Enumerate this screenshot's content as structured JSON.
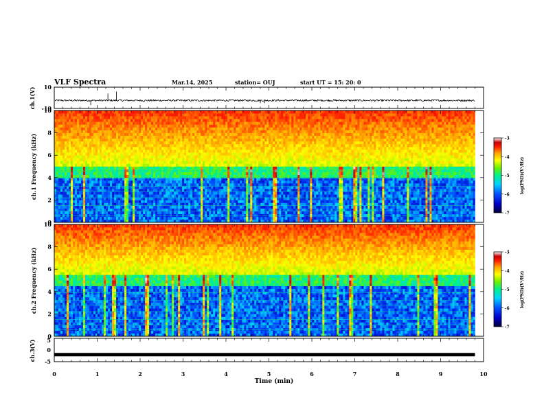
{
  "header": {
    "title": "VLF Spectra",
    "date": "Mar.14, 2025",
    "station": "station= OUJ",
    "start": "start  UT =   15: 20: 0"
  },
  "colors": {
    "spectrum_scale": [
      "#00003a",
      "#0000c8",
      "#0050ff",
      "#00d2ff",
      "#00f08c",
      "#6ef000",
      "#ffff00",
      "#ffa000",
      "#ff1e00",
      "#c80000",
      "#ffffff"
    ],
    "trace": "#000000"
  },
  "chart_data": [
    {
      "type": "line",
      "panel": "ch1-waveform",
      "ylabel": "ch.1(V)",
      "ylim": [
        -10,
        10
      ],
      "yticks": [
        "10",
        "-10"
      ],
      "description_level_v": -2.5,
      "spikes": [
        {
          "x": 0.85,
          "y": -7
        },
        {
          "x": 1.25,
          "y": 4
        },
        {
          "x": 1.45,
          "y": 6
        },
        {
          "x": 4.8,
          "y": -5
        },
        {
          "x": 4.9,
          "y": -5
        }
      ]
    },
    {
      "type": "heatmap",
      "panel": "ch1-spectrogram",
      "ylabel": "ch.1 Frequency (kHz)",
      "ylim": [
        0,
        10
      ],
      "yticks": [
        "0",
        "2",
        "4",
        "6",
        "8",
        "10"
      ],
      "colorbar": {
        "label": "log(PSD)(V²/Hz)",
        "range": [
          -7,
          -3
        ],
        "ticks": [
          "-3",
          "-4",
          "-5",
          "-6",
          "-7"
        ]
      },
      "hot_band_floor_khz": 5.0
    },
    {
      "type": "heatmap",
      "panel": "ch2-spectrogram",
      "ylabel": "ch.2 Frequency (kHz)",
      "ylim": [
        0,
        10
      ],
      "yticks": [
        "0",
        "2",
        "4",
        "6",
        "8",
        "10"
      ],
      "colorbar": {
        "label": "log(PSD)(V²/Hz)",
        "range": [
          -7,
          -3
        ],
        "ticks": [
          "-3",
          "-4",
          "-5",
          "-6",
          "-7"
        ]
      },
      "hot_band_floor_khz": 5.6
    },
    {
      "type": "line",
      "panel": "ch3-waveform",
      "ylabel": "ch.3(V)",
      "ylim": [
        -5,
        5
      ],
      "yticks": [
        "5",
        "0",
        "-5"
      ],
      "x": [
        0,
        9.8
      ],
      "y": [
        -2,
        -2
      ]
    }
  ],
  "x_axis": {
    "label": "Time (min)",
    "xlim": [
      0,
      10
    ],
    "ticks": [
      "0",
      "1",
      "2",
      "3",
      "4",
      "5",
      "6",
      "7",
      "8",
      "9",
      "10"
    ],
    "data_end_min": 9.8
  }
}
